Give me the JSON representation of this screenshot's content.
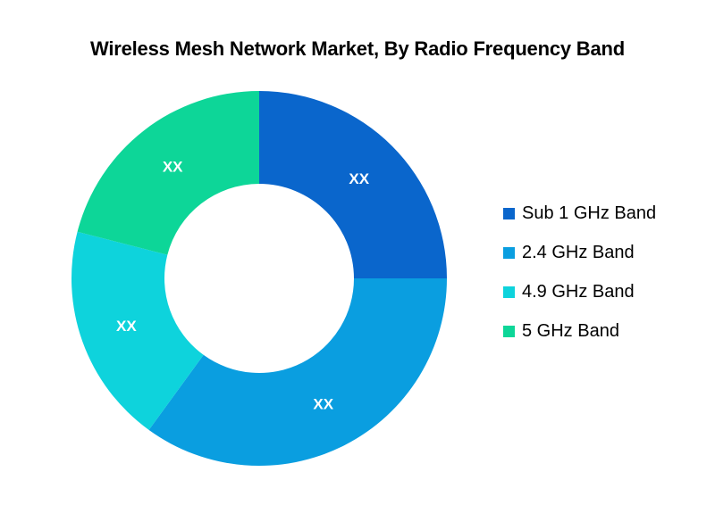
{
  "chart_data": {
    "type": "pie",
    "title": "Wireless Mesh Network Market, By Radio Frequency Band",
    "categories": [
      "Sub 1 GHz Band",
      "2.4 GHz Band",
      "4.9 GHz Band",
      "5 GHz Band"
    ],
    "values": [
      25,
      35,
      19,
      21
    ],
    "data_labels": [
      "XX",
      "XX",
      "XX",
      "XX"
    ],
    "colors": [
      "#0a66cc",
      "#0a9ee0",
      "#0ed3dc",
      "#0dd698"
    ],
    "donut": true,
    "legend_position": "right"
  }
}
